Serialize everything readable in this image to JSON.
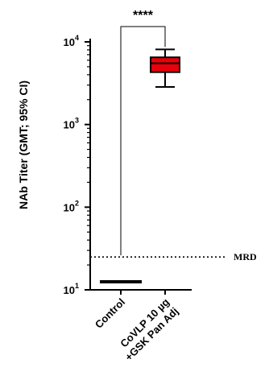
{
  "chart_data": {
    "type": "box",
    "ylabel": "NAb Titer (GMT; 95% CI)",
    "yscale": "log",
    "ylim": [
      10,
      15000
    ],
    "ticks": [
      {
        "value": 10,
        "base": "10",
        "exp": "1"
      },
      {
        "value": 100,
        "base": "10",
        "exp": "2"
      },
      {
        "value": 1000,
        "base": "10",
        "exp": "3"
      },
      {
        "value": 10000,
        "base": "10",
        "exp": "4"
      }
    ],
    "categories": [
      "Control",
      "CoVLP 10 µg\n+GSK Pan Adj"
    ],
    "groups": [
      {
        "category": "Control",
        "kind": "line",
        "value": 12.5,
        "color": "#000000"
      },
      {
        "category": "CoVLP 10 µg\n+GSK Pan Adj",
        "kind": "box",
        "min": 2850,
        "q1": 4300,
        "median": 5500,
        "q3": 6500,
        "max": 8100,
        "color": "#e8000b"
      }
    ],
    "reference_line": {
      "label": "MRD",
      "value": 25
    },
    "significance": {
      "label": "****",
      "from": "Control",
      "to": "CoVLP 10 µg\n+GSK Pan Adj"
    }
  }
}
